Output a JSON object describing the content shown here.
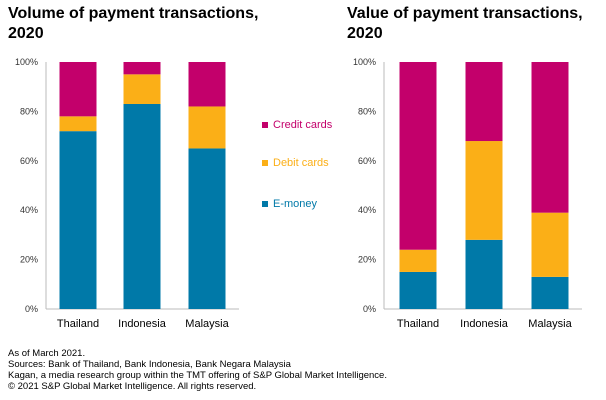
{
  "colors": {
    "credit": "#C3006B",
    "debit": "#FBAF17",
    "emoney": "#0079A8",
    "axis": "#bbbbbb",
    "grid": "#e6e6e6"
  },
  "legend": [
    "Credit cards",
    "Debit cards",
    "E-money"
  ],
  "chart_data": [
    {
      "type": "bar",
      "stacked": true,
      "title": "Volume of payment transactions, 2020",
      "categories": [
        "Thailand",
        "Indonesia",
        "Malaysia"
      ],
      "yticks": [
        "0%",
        "20%",
        "40%",
        "60%",
        "80%",
        "100%"
      ],
      "ylim": [
        0,
        100
      ],
      "series": [
        {
          "name": "E-money",
          "values": [
            72,
            83,
            65
          ]
        },
        {
          "name": "Debit cards",
          "values": [
            6,
            12,
            17
          ]
        },
        {
          "name": "Credit cards",
          "values": [
            22,
            5,
            18
          ]
        }
      ]
    },
    {
      "type": "bar",
      "stacked": true,
      "title": "Value of payment transactions, 2020",
      "categories": [
        "Thailand",
        "Indonesia",
        "Malaysia"
      ],
      "yticks": [
        "0%",
        "20%",
        "40%",
        "60%",
        "80%",
        "100%"
      ],
      "ylim": [
        0,
        100
      ],
      "series": [
        {
          "name": "E-money",
          "values": [
            15,
            28,
            13
          ]
        },
        {
          "name": "Debit cards",
          "values": [
            9,
            40,
            26
          ]
        },
        {
          "name": "Credit cards",
          "values": [
            76,
            32,
            61
          ]
        }
      ]
    }
  ],
  "footnotes": [
    "As of March 2021.",
    "Sources: Bank of Thailand, Bank Indonesia, Bank Negara Malaysia",
    "Kagan, a media research group within the TMT offering of S&P Global Market Intelligence.",
    "© 2021 S&P Global Market Intelligence. All rights reserved."
  ]
}
